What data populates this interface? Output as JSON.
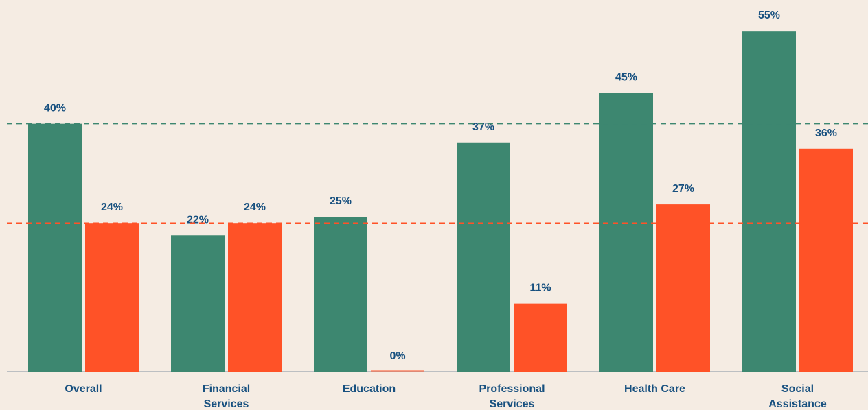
{
  "chart_data": {
    "type": "bar",
    "categories": [
      "Overall",
      "Financial Services",
      "Education",
      "Professional Services",
      "Health Care",
      "Social Assistance"
    ],
    "series": [
      {
        "color": "#3d8770",
        "values": [
          40,
          22,
          25,
          37,
          45,
          55
        ],
        "value_labels": [
          "40%",
          "22%",
          "25%",
          "37%",
          "45%",
          "55%"
        ]
      },
      {
        "color": "#ff5227",
        "values": [
          24,
          24,
          0,
          11,
          27,
          36
        ],
        "value_labels": [
          "24%",
          "24%",
          "0%",
          "11%",
          "27%",
          "36%"
        ]
      }
    ],
    "reference_lines": [
      {
        "value": 40,
        "color": "#3d8770"
      },
      {
        "value": 24,
        "color": "#ff5227"
      }
    ],
    "ylim": [
      0,
      60
    ]
  }
}
